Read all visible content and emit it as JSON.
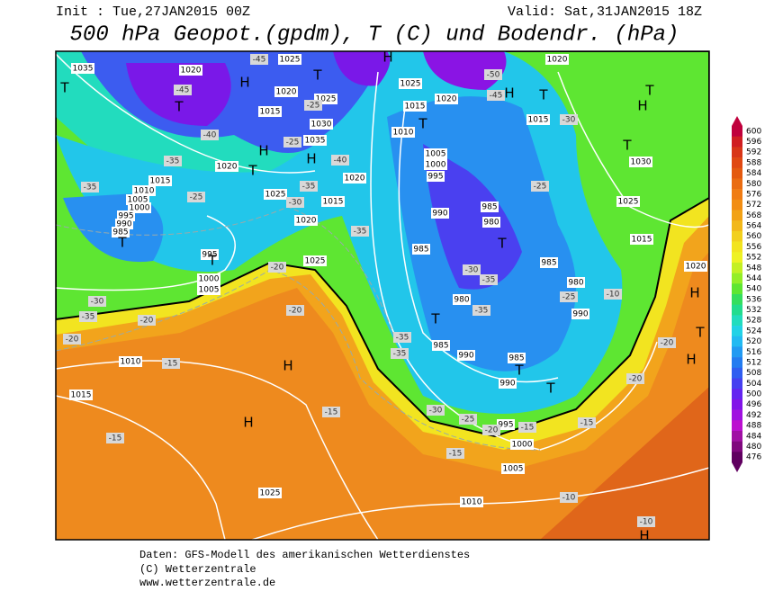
{
  "header": {
    "init": "Init : Tue,27JAN2015 00Z",
    "valid": "Valid: Sat,31JAN2015 18Z",
    "title": "500 hPa Geopot.(gpdm), T (C) und Bodendr. (hPa)"
  },
  "colorbar": {
    "ticks": [
      600,
      596,
      592,
      588,
      584,
      580,
      576,
      572,
      568,
      564,
      560,
      556,
      552,
      548,
      544,
      540,
      536,
      532,
      528,
      524,
      520,
      516,
      512,
      508,
      504,
      500,
      496,
      492,
      488,
      484,
      480,
      476
    ],
    "colors": [
      "#c0003c",
      "#d01e22",
      "#d83618",
      "#e04812",
      "#e45a10",
      "#ea6c12",
      "#f07c14",
      "#f28e14",
      "#f2a216",
      "#f2b81a",
      "#f2d01e",
      "#f2e420",
      "#eef224",
      "#c4f024",
      "#94ee28",
      "#5ee632",
      "#34de5e",
      "#22dc8e",
      "#22dcbe",
      "#22d2e6",
      "#22baf2",
      "#229af2",
      "#247cf0",
      "#305ef0",
      "#4640f0",
      "#6424f0",
      "#8214e8",
      "#a012e0",
      "#bc10d0",
      "#a010a4",
      "#80087e",
      "#600060"
    ]
  },
  "map": {
    "pressure_labels": [
      "1035",
      "1020",
      "1025",
      "1020",
      "1015",
      "1025",
      "1030",
      "1035",
      "1015",
      "1020",
      "1010",
      "1005",
      "1000",
      "995",
      "990",
      "985",
      "1025",
      "1015",
      "1020",
      "1025",
      "1020",
      "995",
      "1000",
      "1005",
      "1025",
      "1020",
      "1015",
      "1010",
      "1005",
      "1000",
      "995",
      "990",
      "985",
      "980",
      "985",
      "980",
      "985",
      "990",
      "985",
      "990",
      "985",
      "980",
      "990",
      "1020",
      "1015",
      "1030",
      "1025",
      "1015",
      "1020",
      "1010",
      "1015",
      "1025",
      "1010",
      "1005",
      "1000",
      "995"
    ],
    "temperature_labels": [
      "-45",
      "-45",
      "-40",
      "-35",
      "-35",
      "-25",
      "-30",
      "-35",
      "-20",
      "-25",
      "-25",
      "-30",
      "-35",
      "-40",
      "-35",
      "-20",
      "-20",
      "-15",
      "-15",
      "-15",
      "-20",
      "-45",
      "-50",
      "-30",
      "-25",
      "-30",
      "-35",
      "-35",
      "-25",
      "-10",
      "-35",
      "-35",
      "-30",
      "-25",
      "-20",
      "-15",
      "-15",
      "-15",
      "-20",
      "-20",
      "-10",
      "-10"
    ],
    "centers": [
      "T",
      "T",
      "H",
      "T",
      "H",
      "H",
      "T",
      "T",
      "H",
      "T",
      "T",
      "H",
      "T",
      "H",
      "T",
      "T",
      "T",
      "T",
      "T",
      "H",
      "H",
      "H",
      "H",
      "T",
      "H",
      "T"
    ]
  },
  "footer": {
    "line1": "Daten: GFS-Modell des amerikanischen Wetterdienstes",
    "line2": "(C) Wetterzentrale",
    "line3": "www.wetterzentrale.de"
  }
}
